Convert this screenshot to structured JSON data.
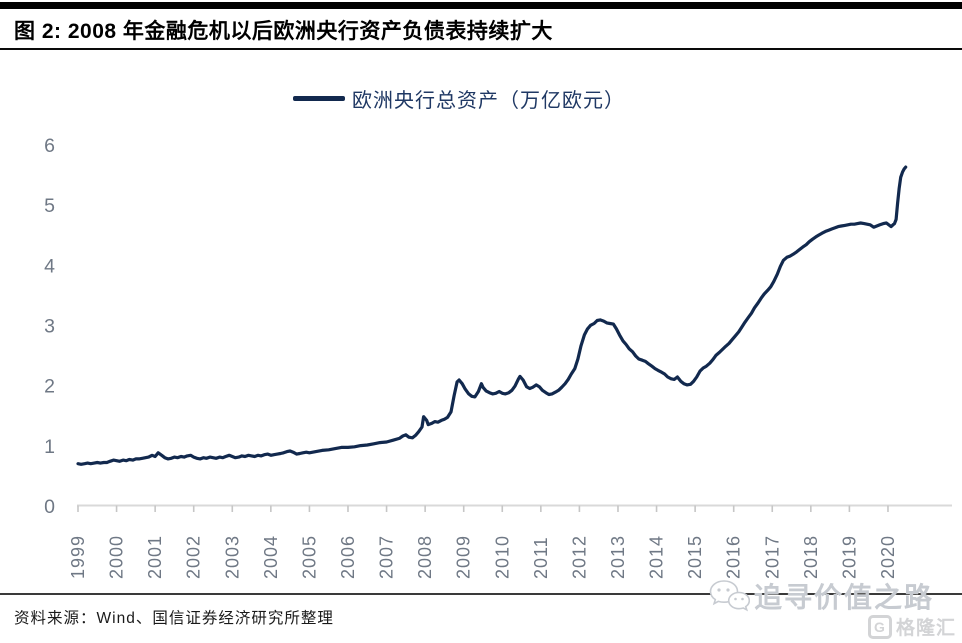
{
  "header": {
    "title": "图 2: 2008 年金融危机以后欧洲央行资产负债表持续扩大"
  },
  "footer": {
    "source": "资料来源：Wind、国信证券经济研究所整理"
  },
  "watermarks": {
    "value_road": "追寻价值之路",
    "gelonghui": "格隆汇",
    "gelonghui_icon": "G"
  },
  "chart_data": {
    "type": "line",
    "title": "2008 年金融危机以后欧洲央行资产负债表持续扩大",
    "legend_label": "欧洲央行总资产（万亿欧元）",
    "legend_position": "top-center",
    "grid": false,
    "xlabel": "",
    "ylabel": "",
    "ylim": [
      0,
      6
    ],
    "yticks": [
      0,
      1,
      2,
      3,
      4,
      5,
      6
    ],
    "x_tick_labels": [
      "1999",
      "2000",
      "2001",
      "2002",
      "2003",
      "2004",
      "2005",
      "2006",
      "2007",
      "2008",
      "2009",
      "2010",
      "2011",
      "2012",
      "2013",
      "2014",
      "2015",
      "2016",
      "2017",
      "2018",
      "2019",
      "2020"
    ],
    "axis_color": "#D9D9D9",
    "tick_color": "#C6C6C6",
    "tick_label_color": "#6F7885",
    "series": [
      {
        "name": "欧洲央行总资产（万亿欧元）",
        "color": "#12294E",
        "points": [
          [
            1999.0,
            0.72
          ],
          [
            1999.08,
            0.71
          ],
          [
            1999.17,
            0.72
          ],
          [
            1999.25,
            0.73
          ],
          [
            1999.33,
            0.72
          ],
          [
            1999.42,
            0.73
          ],
          [
            1999.5,
            0.74
          ],
          [
            1999.58,
            0.73
          ],
          [
            1999.67,
            0.74
          ],
          [
            1999.75,
            0.74
          ],
          [
            1999.83,
            0.76
          ],
          [
            1999.92,
            0.78
          ],
          [
            2000.0,
            0.77
          ],
          [
            2000.08,
            0.76
          ],
          [
            2000.17,
            0.78
          ],
          [
            2000.25,
            0.77
          ],
          [
            2000.33,
            0.79
          ],
          [
            2000.42,
            0.78
          ],
          [
            2000.5,
            0.8
          ],
          [
            2000.58,
            0.8
          ],
          [
            2000.67,
            0.81
          ],
          [
            2000.75,
            0.82
          ],
          [
            2000.83,
            0.83
          ],
          [
            2000.92,
            0.86
          ],
          [
            2001.0,
            0.84
          ],
          [
            2001.08,
            0.9
          ],
          [
            2001.17,
            0.86
          ],
          [
            2001.25,
            0.82
          ],
          [
            2001.33,
            0.8
          ],
          [
            2001.42,
            0.81
          ],
          [
            2001.5,
            0.83
          ],
          [
            2001.58,
            0.82
          ],
          [
            2001.67,
            0.84
          ],
          [
            2001.75,
            0.83
          ],
          [
            2001.83,
            0.85
          ],
          [
            2001.92,
            0.86
          ],
          [
            2002.0,
            0.83
          ],
          [
            2002.08,
            0.81
          ],
          [
            2002.17,
            0.8
          ],
          [
            2002.25,
            0.82
          ],
          [
            2002.33,
            0.81
          ],
          [
            2002.42,
            0.83
          ],
          [
            2002.5,
            0.82
          ],
          [
            2002.58,
            0.81
          ],
          [
            2002.67,
            0.83
          ],
          [
            2002.75,
            0.82
          ],
          [
            2002.83,
            0.84
          ],
          [
            2002.92,
            0.86
          ],
          [
            2003.0,
            0.84
          ],
          [
            2003.08,
            0.82
          ],
          [
            2003.17,
            0.83
          ],
          [
            2003.25,
            0.85
          ],
          [
            2003.33,
            0.84
          ],
          [
            2003.42,
            0.86
          ],
          [
            2003.5,
            0.85
          ],
          [
            2003.58,
            0.84
          ],
          [
            2003.67,
            0.86
          ],
          [
            2003.75,
            0.85
          ],
          [
            2003.83,
            0.87
          ],
          [
            2003.92,
            0.88
          ],
          [
            2004.0,
            0.86
          ],
          [
            2004.08,
            0.87
          ],
          [
            2004.17,
            0.88
          ],
          [
            2004.25,
            0.89
          ],
          [
            2004.33,
            0.9
          ],
          [
            2004.42,
            0.92
          ],
          [
            2004.5,
            0.93
          ],
          [
            2004.58,
            0.91
          ],
          [
            2004.67,
            0.88
          ],
          [
            2004.75,
            0.89
          ],
          [
            2004.83,
            0.9
          ],
          [
            2004.92,
            0.91
          ],
          [
            2005.0,
            0.9
          ],
          [
            2005.17,
            0.92
          ],
          [
            2005.33,
            0.94
          ],
          [
            2005.5,
            0.95
          ],
          [
            2005.67,
            0.97
          ],
          [
            2005.83,
            0.99
          ],
          [
            2006.0,
            0.99
          ],
          [
            2006.17,
            1.0
          ],
          [
            2006.33,
            1.02
          ],
          [
            2006.5,
            1.03
          ],
          [
            2006.67,
            1.05
          ],
          [
            2006.83,
            1.07
          ],
          [
            2007.0,
            1.08
          ],
          [
            2007.17,
            1.11
          ],
          [
            2007.33,
            1.14
          ],
          [
            2007.42,
            1.18
          ],
          [
            2007.5,
            1.2
          ],
          [
            2007.58,
            1.16
          ],
          [
            2007.67,
            1.15
          ],
          [
            2007.75,
            1.19
          ],
          [
            2007.83,
            1.25
          ],
          [
            2007.92,
            1.33
          ],
          [
            2007.96,
            1.5
          ],
          [
            2008.04,
            1.44
          ],
          [
            2008.08,
            1.37
          ],
          [
            2008.17,
            1.39
          ],
          [
            2008.25,
            1.42
          ],
          [
            2008.33,
            1.41
          ],
          [
            2008.42,
            1.44
          ],
          [
            2008.5,
            1.46
          ],
          [
            2008.58,
            1.49
          ],
          [
            2008.67,
            1.58
          ],
          [
            2008.75,
            1.85
          ],
          [
            2008.83,
            2.08
          ],
          [
            2008.88,
            2.11
          ],
          [
            2008.96,
            2.05
          ],
          [
            2009.04,
            1.96
          ],
          [
            2009.13,
            1.88
          ],
          [
            2009.21,
            1.84
          ],
          [
            2009.29,
            1.83
          ],
          [
            2009.38,
            1.92
          ],
          [
            2009.46,
            2.05
          ],
          [
            2009.5,
            1.99
          ],
          [
            2009.58,
            1.93
          ],
          [
            2009.67,
            1.9
          ],
          [
            2009.75,
            1.88
          ],
          [
            2009.83,
            1.89
          ],
          [
            2009.92,
            1.92
          ],
          [
            2010.0,
            1.89
          ],
          [
            2010.08,
            1.88
          ],
          [
            2010.17,
            1.9
          ],
          [
            2010.25,
            1.94
          ],
          [
            2010.33,
            2.01
          ],
          [
            2010.42,
            2.13
          ],
          [
            2010.46,
            2.17
          ],
          [
            2010.54,
            2.11
          ],
          [
            2010.63,
            2.0
          ],
          [
            2010.71,
            1.97
          ],
          [
            2010.79,
            1.99
          ],
          [
            2010.88,
            2.03
          ],
          [
            2010.96,
            2.0
          ],
          [
            2011.04,
            1.94
          ],
          [
            2011.13,
            1.9
          ],
          [
            2011.21,
            1.87
          ],
          [
            2011.29,
            1.88
          ],
          [
            2011.38,
            1.91
          ],
          [
            2011.46,
            1.94
          ],
          [
            2011.54,
            1.99
          ],
          [
            2011.63,
            2.05
          ],
          [
            2011.71,
            2.12
          ],
          [
            2011.79,
            2.21
          ],
          [
            2011.88,
            2.3
          ],
          [
            2011.96,
            2.46
          ],
          [
            2012.04,
            2.68
          ],
          [
            2012.13,
            2.86
          ],
          [
            2012.21,
            2.96
          ],
          [
            2012.29,
            3.02
          ],
          [
            2012.38,
            3.05
          ],
          [
            2012.46,
            3.1
          ],
          [
            2012.54,
            3.11
          ],
          [
            2012.63,
            3.09
          ],
          [
            2012.71,
            3.06
          ],
          [
            2012.79,
            3.05
          ],
          [
            2012.88,
            3.04
          ],
          [
            2012.96,
            2.96
          ],
          [
            2013.04,
            2.86
          ],
          [
            2013.13,
            2.76
          ],
          [
            2013.21,
            2.7
          ],
          [
            2013.29,
            2.63
          ],
          [
            2013.38,
            2.58
          ],
          [
            2013.46,
            2.51
          ],
          [
            2013.54,
            2.46
          ],
          [
            2013.63,
            2.44
          ],
          [
            2013.71,
            2.42
          ],
          [
            2013.79,
            2.38
          ],
          [
            2013.88,
            2.34
          ],
          [
            2013.96,
            2.3
          ],
          [
            2014.04,
            2.27
          ],
          [
            2014.13,
            2.24
          ],
          [
            2014.21,
            2.21
          ],
          [
            2014.29,
            2.16
          ],
          [
            2014.38,
            2.13
          ],
          [
            2014.46,
            2.12
          ],
          [
            2014.54,
            2.16
          ],
          [
            2014.63,
            2.09
          ],
          [
            2014.71,
            2.05
          ],
          [
            2014.79,
            2.03
          ],
          [
            2014.88,
            2.04
          ],
          [
            2014.96,
            2.09
          ],
          [
            2015.04,
            2.16
          ],
          [
            2015.13,
            2.26
          ],
          [
            2015.21,
            2.31
          ],
          [
            2015.29,
            2.34
          ],
          [
            2015.38,
            2.39
          ],
          [
            2015.46,
            2.45
          ],
          [
            2015.54,
            2.52
          ],
          [
            2015.63,
            2.57
          ],
          [
            2015.71,
            2.62
          ],
          [
            2015.79,
            2.67
          ],
          [
            2015.88,
            2.72
          ],
          [
            2015.96,
            2.78
          ],
          [
            2016.04,
            2.84
          ],
          [
            2016.13,
            2.91
          ],
          [
            2016.21,
            2.99
          ],
          [
            2016.29,
            3.07
          ],
          [
            2016.38,
            3.15
          ],
          [
            2016.46,
            3.22
          ],
          [
            2016.54,
            3.31
          ],
          [
            2016.63,
            3.39
          ],
          [
            2016.71,
            3.47
          ],
          [
            2016.79,
            3.54
          ],
          [
            2016.88,
            3.6
          ],
          [
            2016.96,
            3.66
          ],
          [
            2017.04,
            3.75
          ],
          [
            2017.13,
            3.87
          ],
          [
            2017.21,
            4.0
          ],
          [
            2017.29,
            4.1
          ],
          [
            2017.38,
            4.15
          ],
          [
            2017.46,
            4.17
          ],
          [
            2017.54,
            4.2
          ],
          [
            2017.63,
            4.24
          ],
          [
            2017.71,
            4.28
          ],
          [
            2017.79,
            4.32
          ],
          [
            2017.88,
            4.36
          ],
          [
            2017.96,
            4.41
          ],
          [
            2018.04,
            4.45
          ],
          [
            2018.13,
            4.49
          ],
          [
            2018.21,
            4.52
          ],
          [
            2018.29,
            4.55
          ],
          [
            2018.38,
            4.58
          ],
          [
            2018.46,
            4.6
          ],
          [
            2018.54,
            4.62
          ],
          [
            2018.63,
            4.64
          ],
          [
            2018.71,
            4.66
          ],
          [
            2018.79,
            4.67
          ],
          [
            2018.88,
            4.68
          ],
          [
            2018.96,
            4.69
          ],
          [
            2019.04,
            4.7
          ],
          [
            2019.13,
            4.7
          ],
          [
            2019.21,
            4.71
          ],
          [
            2019.29,
            4.72
          ],
          [
            2019.38,
            4.71
          ],
          [
            2019.46,
            4.7
          ],
          [
            2019.54,
            4.69
          ],
          [
            2019.63,
            4.65
          ],
          [
            2019.71,
            4.67
          ],
          [
            2019.79,
            4.69
          ],
          [
            2019.88,
            4.71
          ],
          [
            2019.96,
            4.72
          ],
          [
            2020.04,
            4.68
          ],
          [
            2020.08,
            4.66
          ],
          [
            2020.13,
            4.69
          ],
          [
            2020.17,
            4.71
          ],
          [
            2020.21,
            4.78
          ],
          [
            2020.25,
            5.05
          ],
          [
            2020.29,
            5.3
          ],
          [
            2020.33,
            5.48
          ],
          [
            2020.38,
            5.57
          ],
          [
            2020.42,
            5.62
          ],
          [
            2020.46,
            5.65
          ]
        ]
      }
    ]
  }
}
